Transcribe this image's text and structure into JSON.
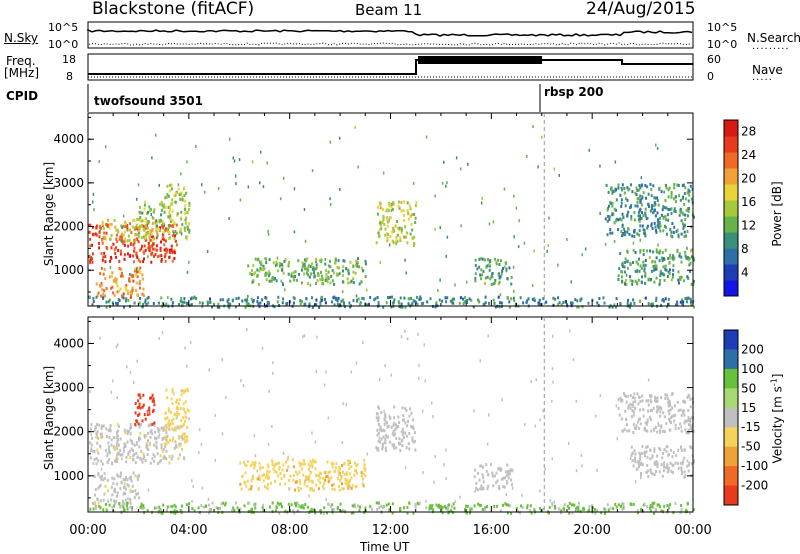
{
  "header": {
    "station": "Blackstone (fitACF)",
    "beam": "Beam 11",
    "date": "24/Aug/2015"
  },
  "side_labels": {
    "nsky": "N.Sky",
    "nsearch": "N.Search",
    "freq": "Freq.",
    "freq_unit": "[MHz]",
    "nave": "Nave",
    "cpid": "CPID"
  },
  "small_ticks": {
    "nsky_left": [
      "10^5",
      "10^0"
    ],
    "nsearch_right": [
      "10^5",
      "10^0"
    ],
    "freq_left": [
      "18",
      "8"
    ],
    "nave_right": [
      "60",
      "0"
    ]
  },
  "cpid_labels": [
    "twofsound 3501",
    "rbsp 200"
  ],
  "colors": {
    "power": [
      "#1414e6",
      "#1e3cb4",
      "#2f6fa8",
      "#3a8f7a",
      "#67b34b",
      "#a6c83a",
      "#e8d43a",
      "#f0a23a",
      "#ee6a26",
      "#e83a1c",
      "#d81a14"
    ],
    "velocity": [
      "#1e3cb4",
      "#2f6fa8",
      "#3a8f7a",
      "#67c03a",
      "#a8d874",
      "#c0c0c0",
      "#f5d25a",
      "#f0a23a",
      "#ee6a26",
      "#e83a1c"
    ]
  },
  "chart_data": [
    {
      "type": "heatmap",
      "name": "power",
      "xlabel": "",
      "ylabel": "Slant Range [km]",
      "y_ticks": [
        "1000",
        "2000",
        "3000",
        "4000"
      ],
      "xlim_hours": [
        0,
        24
      ],
      "ylim_km": [
        180,
        4600
      ],
      "colorbar_label": "Power [dB]",
      "colorbar_ticks": [
        "4",
        "8",
        "12",
        "16",
        "20",
        "24",
        "28"
      ],
      "colorbar_range": [
        0,
        30
      ],
      "regions": [
        {
          "x": [
            0.0,
            3.5
          ],
          "y": [
            1200,
            2100
          ],
          "level": 27
        },
        {
          "x": [
            0.5,
            3.0
          ],
          "y": [
            1700,
            2200
          ],
          "level": 17
        },
        {
          "x": [
            2.0,
            3.0
          ],
          "y": [
            2000,
            2600
          ],
          "level": 13
        },
        {
          "x": [
            3.0,
            4.0
          ],
          "y": [
            1700,
            3000
          ],
          "level": 15
        },
        {
          "x": [
            0.3,
            2.2
          ],
          "y": [
            400,
            1100
          ],
          "level": 22
        },
        {
          "x": [
            6.3,
            11.0
          ],
          "y": [
            700,
            1300
          ],
          "level": 12
        },
        {
          "x": [
            11.4,
            13.0
          ],
          "y": [
            1600,
            2600
          ],
          "level": 16
        },
        {
          "x": [
            15.3,
            16.8
          ],
          "y": [
            700,
            1300
          ],
          "level": 10
        },
        {
          "x": [
            20.5,
            24.0
          ],
          "y": [
            1800,
            3000
          ],
          "level": 9
        },
        {
          "x": [
            21.0,
            24.0
          ],
          "y": [
            700,
            1500
          ],
          "level": 10
        },
        {
          "x": [
            0.0,
            24.0
          ],
          "y": [
            180,
            420
          ],
          "level": 8
        }
      ]
    },
    {
      "type": "heatmap",
      "name": "velocity",
      "xlabel": "Time UT",
      "ylabel": "Slant Range [km]",
      "x_ticks": [
        "00:00",
        "04:00",
        "08:00",
        "12:00",
        "16:00",
        "20:00",
        "00:00"
      ],
      "y_ticks": [
        "1000",
        "2000",
        "3000",
        "4000"
      ],
      "xlim_hours": [
        0,
        24
      ],
      "ylim_km": [
        180,
        4600
      ],
      "colorbar_label": "Velocity [m s",
      "colorbar_sup": "-1",
      "colorbar_label_end": "]",
      "colorbar_ticks": [
        "200",
        "100",
        "50",
        "15",
        "-15",
        "-50",
        "-100",
        "-200"
      ],
      "regions": [
        {
          "x": [
            0.0,
            3.8
          ],
          "y": [
            1300,
            2200
          ],
          "level": -5
        },
        {
          "x": [
            1.8,
            2.6
          ],
          "y": [
            2200,
            2900
          ],
          "level": -180
        },
        {
          "x": [
            3.0,
            4.0
          ],
          "y": [
            1700,
            3000
          ],
          "level": -30
        },
        {
          "x": [
            0.2,
            2.0
          ],
          "y": [
            400,
            1100
          ],
          "level": -5
        },
        {
          "x": [
            6.0,
            11.0
          ],
          "y": [
            700,
            1400
          ],
          "level": -40
        },
        {
          "x": [
            11.4,
            13.0
          ],
          "y": [
            1600,
            2600
          ],
          "level": 0
        },
        {
          "x": [
            15.3,
            16.8
          ],
          "y": [
            700,
            1300
          ],
          "level": 0
        },
        {
          "x": [
            21.0,
            24.0
          ],
          "y": [
            2000,
            2900
          ],
          "level": 0
        },
        {
          "x": [
            21.5,
            24.0
          ],
          "y": [
            1000,
            1700
          ],
          "level": 0
        },
        {
          "x": [
            0.0,
            24.0
          ],
          "y": [
            180,
            420
          ],
          "level": 20
        }
      ]
    }
  ]
}
